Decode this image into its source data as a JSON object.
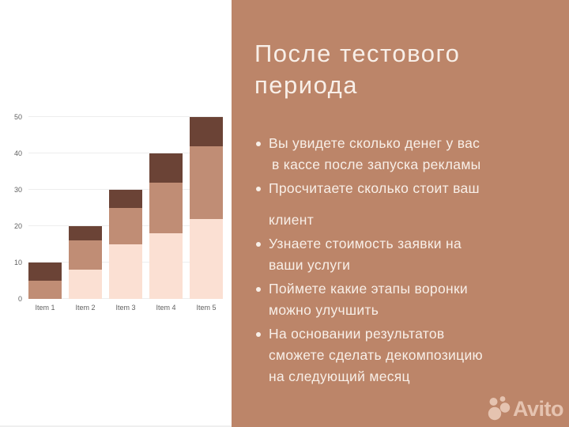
{
  "slide": {
    "title_lines": [
      "После тестового",
      "периода"
    ],
    "bullets": [
      {
        "lines": [
          "Вы увидете сколько денег у вас",
          "в кассе после запуска рекламы"
        ]
      },
      {
        "lines": [
          "Просчитаете сколько стоит ваш",
          "клиент"
        ]
      },
      {
        "lines": [
          "Узнаете стоимость заявки на",
          "ваши услуги"
        ]
      },
      {
        "lines": [
          "Поймете какие этапы воронки",
          "можно улучшить"
        ]
      },
      {
        "lines": [
          "На основании результатов",
          "сможете сделать декомпозицию",
          "на следующий месяц"
        ]
      }
    ],
    "watermark": {
      "brand": "Avito"
    }
  },
  "colors": {
    "panel_bg": "#bc8569",
    "left_bg": "#ffffff",
    "text_cream": "#f8efe8",
    "axis_text": "#616161",
    "gridline": "#ededed",
    "watermark": "#ffe9dc"
  },
  "chart_data": {
    "type": "bar",
    "stacked": true,
    "title": "",
    "xlabel": "",
    "ylabel": "",
    "categories": [
      "Item 1",
      "Item 2",
      "Item 3",
      "Item 4",
      "Item 5"
    ],
    "series": [
      {
        "name": "bottom-light",
        "color": "#fbe0d3",
        "values": [
          0,
          8,
          15,
          18,
          22
        ]
      },
      {
        "name": "middle-tan",
        "color": "#c08d75",
        "values": [
          5,
          8,
          10,
          14,
          20
        ]
      },
      {
        "name": "top-dark",
        "color": "#6b4336",
        "values": [
          5,
          4,
          5,
          8,
          8
        ]
      }
    ],
    "totals": [
      10,
      20,
      30,
      40,
      50
    ],
    "yticks": [
      0,
      10,
      20,
      30,
      40,
      50
    ],
    "ylim": [
      0,
      50
    ],
    "grid": true,
    "legend": false
  }
}
